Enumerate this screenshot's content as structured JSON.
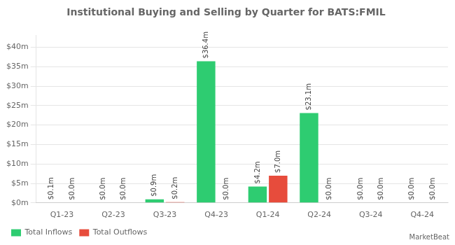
{
  "chart_data": {
    "type": "bar",
    "title": "Institutional Buying and Selling by Quarter for BATS:FMIL",
    "categories": [
      "Q1-23",
      "Q2-23",
      "Q3-23",
      "Q4-23",
      "Q1-24",
      "Q2-24",
      "Q3-24",
      "Q4-24"
    ],
    "series": [
      {
        "name": "Total Inflows",
        "color": "#2ecc71",
        "values": [
          0.1,
          0.0,
          0.9,
          36.4,
          4.2,
          23.1,
          0.0,
          0.0
        ],
        "value_labels": [
          "$0.1m",
          "$0.0m",
          "$0.9m",
          "$36.4m",
          "$4.2m",
          "$23.1m",
          "$0.0m",
          "$0.0m"
        ]
      },
      {
        "name": "Total Outflows",
        "color": "#e74c3c",
        "values": [
          0.0,
          0.0,
          0.2,
          0.0,
          7.0,
          0.0,
          0.0,
          0.0
        ],
        "value_labels": [
          "$0.0m",
          "$0.0m",
          "$0.2m",
          "$0.0m",
          "$7.0m",
          "$0.0m",
          "$0.0m",
          "$0.0m"
        ]
      }
    ],
    "ylim": [
      0,
      43
    ],
    "yticks": [
      {
        "value": 0,
        "label": "$0m"
      },
      {
        "value": 5,
        "label": "$5m"
      },
      {
        "value": 10,
        "label": "$10m"
      },
      {
        "value": 15,
        "label": "$15m"
      },
      {
        "value": 20,
        "label": "$20m"
      },
      {
        "value": 25,
        "label": "$25m"
      },
      {
        "value": 30,
        "label": "$30m"
      },
      {
        "value": 35,
        "label": "$35m"
      },
      {
        "value": 40,
        "label": "$40m"
      }
    ],
    "grid": true,
    "legend": "lower left",
    "data_labels": true,
    "annotations": [
      "MarketBeat"
    ]
  }
}
